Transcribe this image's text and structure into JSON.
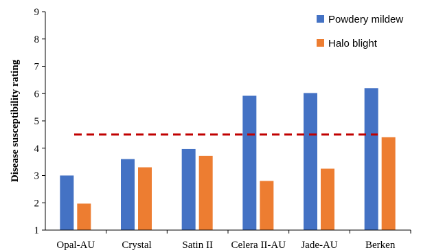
{
  "chart_data": {
    "type": "bar",
    "categories": [
      "Opal-AU",
      "Crystal",
      "Satin II",
      "Celera II-AU",
      "Jade-AU",
      "Berken"
    ],
    "series": [
      {
        "name": "Powdery mildew",
        "color": "#4472c4",
        "values": [
          3.0,
          3.6,
          3.97,
          5.92,
          6.02,
          6.2
        ]
      },
      {
        "name": "Halo blight",
        "color": "#ed7d31",
        "values": [
          1.97,
          3.3,
          3.72,
          2.8,
          3.25,
          4.4
        ]
      }
    ],
    "ylabel": "Disease susceptibility rating",
    "xlabel": "",
    "ylim": [
      1,
      9
    ],
    "yticks": [
      1,
      2,
      3,
      4,
      5,
      6,
      7,
      8,
      9
    ],
    "reference_line": {
      "value": 4.5,
      "color": "#c00000",
      "style": "dashed"
    },
    "grid": false,
    "legend": "top-right"
  }
}
